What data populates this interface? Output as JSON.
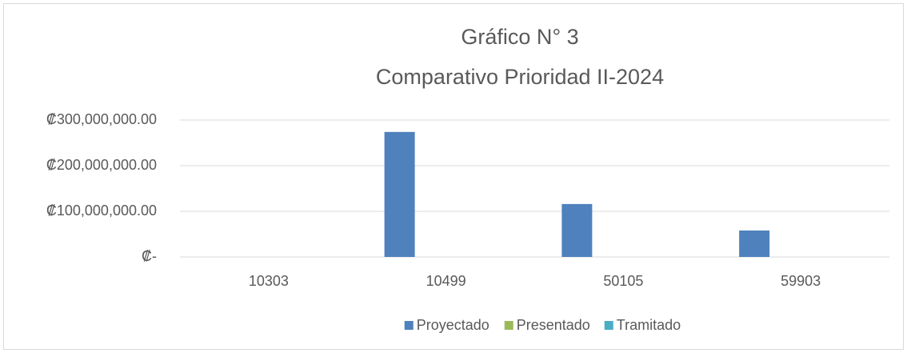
{
  "chart_data": {
    "type": "bar",
    "title": "Gráfico N° 3",
    "subtitle": "Comparativo Prioridad II-2024",
    "categories": [
      "10303",
      "10499",
      "50105",
      "59903"
    ],
    "series": [
      {
        "name": "Proyectado",
        "color": "#4f81bd",
        "values": [
          0,
          274000000,
          116000000,
          58000000
        ]
      },
      {
        "name": "Presentado",
        "color": "#9bbb59",
        "values": [
          0,
          0,
          0,
          0
        ]
      },
      {
        "name": "Tramitado",
        "color": "#4bacc6",
        "values": [
          0,
          0,
          0,
          0
        ]
      }
    ],
    "ylim": [
      0,
      300000000
    ],
    "yticks": [
      {
        "value": 0,
        "label": "₡-"
      },
      {
        "value": 100000000,
        "label": "₡100,000,000.00"
      },
      {
        "value": 200000000,
        "label": "₡200,000,000.00"
      },
      {
        "value": 300000000,
        "label": "₡300,000,000.00"
      }
    ],
    "grid": true,
    "legend": "bottom"
  }
}
